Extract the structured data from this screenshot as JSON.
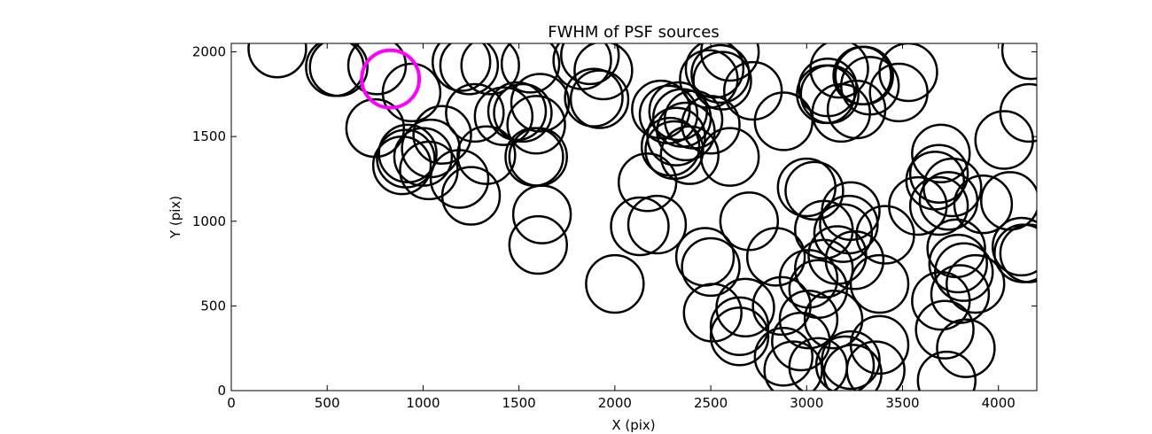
{
  "chart_data": {
    "type": "scatter",
    "title": "FWHM of PSF sources",
    "xlabel": "X (pix)",
    "ylabel": "Y (pix)",
    "xlim": [
      0,
      4200
    ],
    "ylim": [
      0,
      2050
    ],
    "xticks": [
      0,
      500,
      1000,
      1500,
      2000,
      2500,
      3000,
      3500,
      4000
    ],
    "yticks": [
      0,
      500,
      1000,
      1500,
      2000
    ],
    "grid": false,
    "marker": "open-circle",
    "marker_radius_pixels": 150,
    "series": [
      {
        "color": "#000000",
        "points": [
          [
            240,
            2020
          ],
          [
            540,
            1910
          ],
          [
            560,
            1910
          ],
          [
            760,
            1920
          ],
          [
            750,
            1550
          ],
          [
            940,
            1760
          ],
          [
            890,
            1330
          ],
          [
            910,
            1370
          ],
          [
            920,
            1400
          ],
          [
            1000,
            1380
          ],
          [
            1030,
            1300
          ],
          [
            1040,
            1430
          ],
          [
            1100,
            1510
          ],
          [
            1200,
            1940
          ],
          [
            1190,
            1250
          ],
          [
            1240,
            1920
          ],
          [
            1250,
            1150
          ],
          [
            1270,
            1640
          ],
          [
            1330,
            1390
          ],
          [
            1350,
            1920
          ],
          [
            1420,
            1620
          ],
          [
            1490,
            1650
          ],
          [
            1520,
            1640
          ],
          [
            1560,
            1930
          ],
          [
            1590,
            1570
          ],
          [
            1610,
            1700
          ],
          [
            1580,
            1380
          ],
          [
            1600,
            1380
          ],
          [
            1620,
            1040
          ],
          [
            1600,
            860
          ],
          [
            1830,
            1950
          ],
          [
            1870,
            1980
          ],
          [
            1890,
            1730
          ],
          [
            1920,
            1720
          ],
          [
            1940,
            1890
          ],
          [
            2000,
            630
          ],
          [
            2130,
            970
          ],
          [
            2170,
            1230
          ],
          [
            2220,
            980
          ],
          [
            2240,
            1660
          ],
          [
            2280,
            1630
          ],
          [
            2290,
            1440
          ],
          [
            2310,
            1420
          ],
          [
            2320,
            1500
          ],
          [
            2330,
            1650
          ],
          [
            2350,
            1610
          ],
          [
            2390,
            1390
          ],
          [
            2370,
            1530
          ],
          [
            2410,
            1600
          ],
          [
            2490,
            1840
          ],
          [
            2500,
            1570
          ],
          [
            2470,
            790
          ],
          [
            2500,
            730
          ],
          [
            2510,
            460
          ],
          [
            2520,
            1900
          ],
          [
            2550,
            1870
          ],
          [
            2560,
            1830
          ],
          [
            2600,
            2000
          ],
          [
            2600,
            1380
          ],
          [
            2650,
            320
          ],
          [
            2650,
            380
          ],
          [
            2680,
            490
          ],
          [
            2700,
            1000
          ],
          [
            2720,
            1770
          ],
          [
            2840,
            790
          ],
          [
            2870,
            500
          ],
          [
            2880,
            200
          ],
          [
            2880,
            1590
          ],
          [
            2930,
            120
          ],
          [
            2970,
            290
          ],
          [
            3000,
            1200
          ],
          [
            3010,
            420
          ],
          [
            3010,
            660
          ],
          [
            3040,
            1180
          ],
          [
            3060,
            140
          ],
          [
            3060,
            600
          ],
          [
            3090,
            720
          ],
          [
            3090,
            950
          ],
          [
            3100,
            1750
          ],
          [
            3110,
            1790
          ],
          [
            3120,
            1750
          ],
          [
            3140,
            420
          ],
          [
            3160,
            800
          ],
          [
            3170,
            1900
          ],
          [
            3180,
            1640
          ],
          [
            3190,
            930
          ],
          [
            3200,
            150
          ],
          [
            3220,
            980
          ],
          [
            3230,
            180
          ],
          [
            3230,
            1060
          ],
          [
            3240,
            100
          ],
          [
            3250,
            770
          ],
          [
            3260,
            1660
          ],
          [
            3290,
            1860
          ],
          [
            3300,
            1860
          ],
          [
            3330,
            1800
          ],
          [
            3360,
            120
          ],
          [
            3380,
            270
          ],
          [
            3380,
            630
          ],
          [
            3410,
            920
          ],
          [
            3480,
            1760
          ],
          [
            3530,
            1880
          ],
          [
            3580,
            1090
          ],
          [
            3670,
            1240
          ],
          [
            3690,
            1280
          ],
          [
            3690,
            1090
          ],
          [
            3700,
            1400
          ],
          [
            3700,
            530
          ],
          [
            3720,
            360
          ],
          [
            3730,
            60
          ],
          [
            3740,
            1120
          ],
          [
            3760,
            1200
          ],
          [
            3780,
            840
          ],
          [
            3790,
            750
          ],
          [
            3800,
            570
          ],
          [
            3820,
            700
          ],
          [
            3830,
            250
          ],
          [
            3880,
            630
          ],
          [
            3920,
            1100
          ],
          [
            4030,
            1480
          ],
          [
            4060,
            1120
          ],
          [
            4120,
            850
          ],
          [
            4130,
            810
          ],
          [
            4160,
            810
          ],
          [
            4160,
            1640
          ],
          [
            4170,
            2010
          ]
        ]
      },
      {
        "color": "#ff00ff",
        "points": [
          [
            830,
            1840
          ]
        ]
      }
    ]
  }
}
